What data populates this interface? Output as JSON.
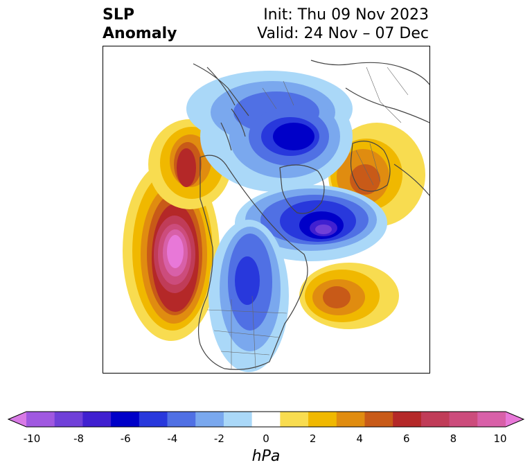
{
  "title": {
    "left_line1": "SLP",
    "left_line2": "Anomaly",
    "right_line1": "Init: Thu 09 Nov 2023",
    "right_line2": "Valid: 24 Nov – 07 Dec"
  },
  "colorbar": {
    "unit": "hPa",
    "tick_labels": [
      "-10",
      "-8",
      "-6",
      "-4",
      "-2",
      "0",
      "2",
      "4",
      "6",
      "8",
      "10"
    ],
    "colors": [
      "#d87ae6",
      "#a058e0",
      "#7040d8",
      "#4020d0",
      "#0000c8",
      "#2838dc",
      "#5070e4",
      "#7aa8ee",
      "#aad8f8",
      "#ffffff",
      "#f8dc50",
      "#f0b800",
      "#e08c10",
      "#c85a18",
      "#b42828",
      "#c03c58",
      "#cc4c7c",
      "#d860a8",
      "#e878d8"
    ]
  },
  "map_features": {
    "positive_anomalies": [
      {
        "region": "Gulf of Alaska / NE Pacific",
        "peak_hpa": 10
      },
      {
        "region": "Western Europe / Scandinavia",
        "peak_hpa": 5
      },
      {
        "region": "North Atlantic south of Greenland",
        "peak_hpa": 5
      }
    ],
    "negative_anomalies": [
      {
        "region": "Central Arctic / Siberia",
        "peak_hpa": -6
      },
      {
        "region": "Greenland / Baffin Bay",
        "peak_hpa": -8
      },
      {
        "region": "Central North America / Hudson Bay",
        "peak_hpa": -5
      }
    ]
  }
}
